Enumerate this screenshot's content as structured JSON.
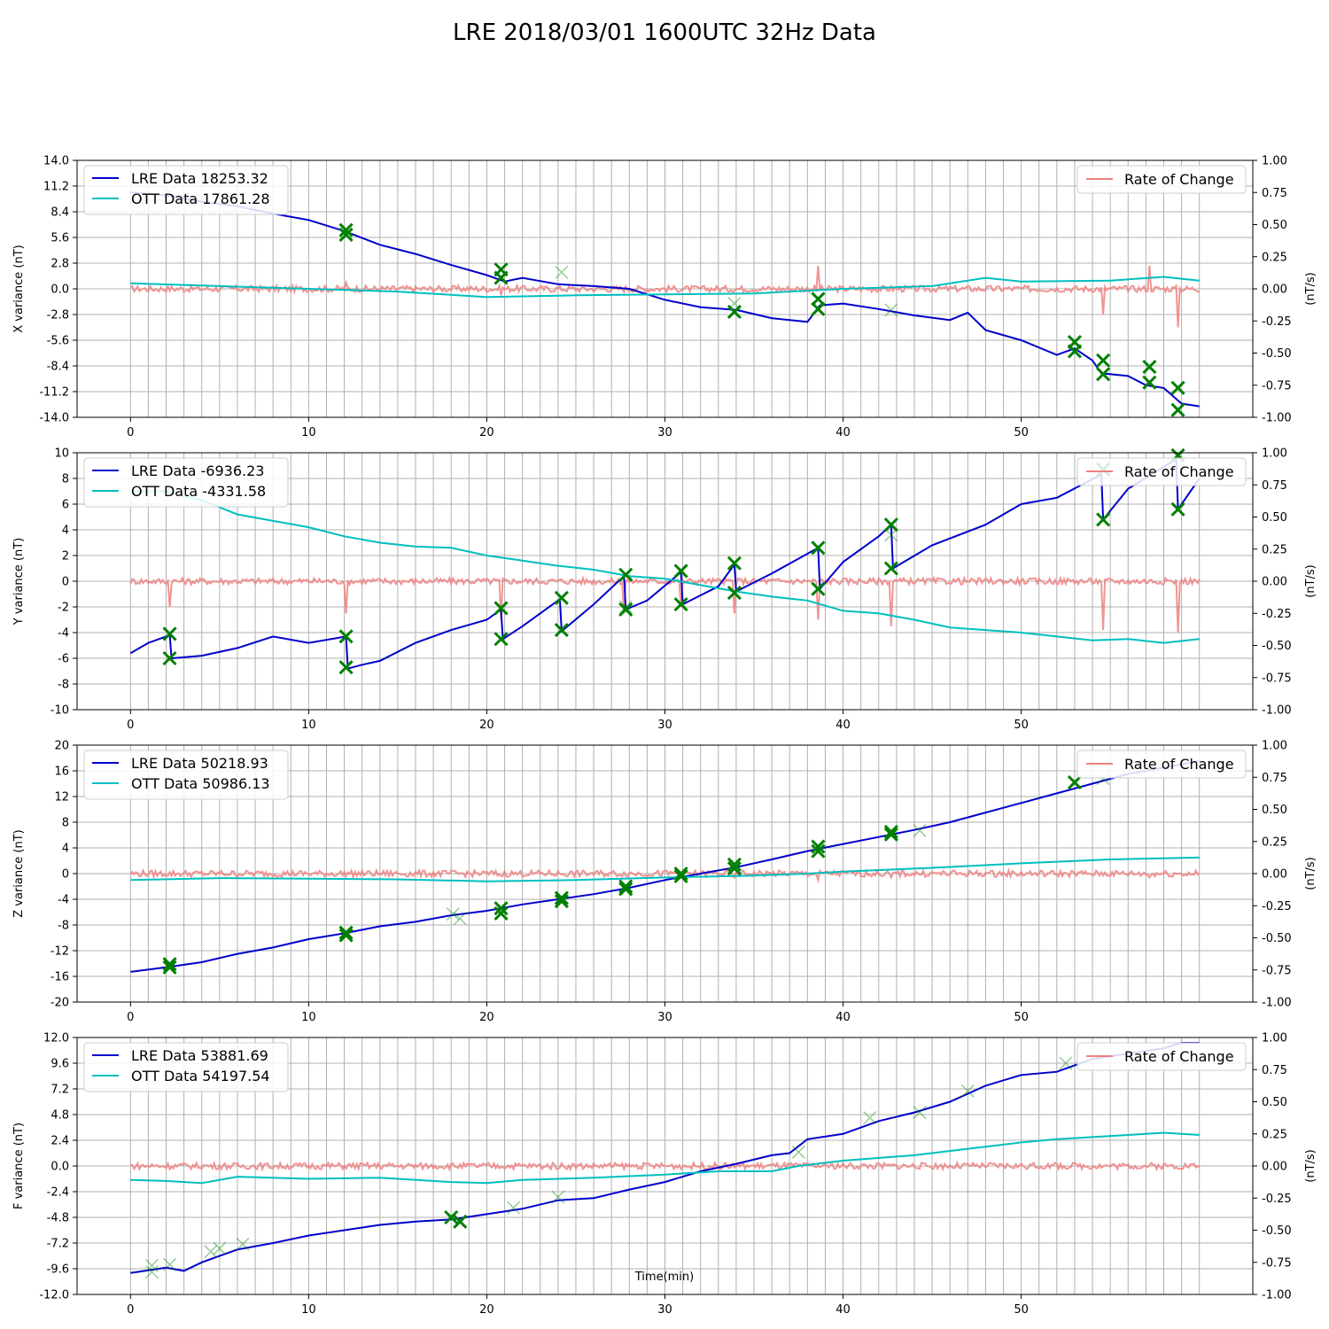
{
  "title": "LRE 2018/03/01 1600UTC 32Hz Data",
  "xlabel": "Time(min)",
  "colors": {
    "lre": "#0000cc",
    "ott": "#00bfbf",
    "rate": "#f08080",
    "marker": "#008000"
  },
  "chart_data": [
    {
      "type": "line",
      "ylabel": "X variance (nT)",
      "y2label": "(nT/s)",
      "xlim": [
        -3,
        63
      ],
      "xticks": [
        0,
        10,
        20,
        30,
        40,
        50
      ],
      "ylim": [
        -14,
        14
      ],
      "yticks": [
        "-14.0",
        "-11.2",
        "-8.4",
        "-5.6",
        "-2.8",
        "0.0",
        "2.8",
        "5.6",
        "8.4",
        "11.2",
        "14.0"
      ],
      "y2lim": [
        -1,
        1
      ],
      "y2ticks": [
        "-1.00",
        "-0.75",
        "-0.50",
        "-0.25",
        "0.00",
        "0.25",
        "0.50",
        "0.75",
        "1.00"
      ],
      "legend": [
        "LRE Data 18253.32",
        "OTT Data 17861.28"
      ],
      "legend2": "Rate of Change",
      "series": [
        {
          "name": "LRE Data 18253.32",
          "x": [
            0,
            2,
            4,
            6,
            8,
            10,
            12,
            14,
            16,
            18,
            20,
            21,
            22,
            24,
            26,
            28,
            30,
            32,
            34,
            36,
            38,
            38.7,
            40,
            42,
            44,
            46,
            47,
            48,
            50,
            52,
            53,
            54,
            54.5,
            56,
            57,
            58,
            59,
            60
          ],
          "y": [
            10.5,
            10.2,
            9.5,
            9,
            8.2,
            7.5,
            6.3,
            4.8,
            3.8,
            2.6,
            1.5,
            0.8,
            1.2,
            0.5,
            0.3,
            0,
            -1.2,
            -2,
            -2.3,
            -3.2,
            -3.6,
            -1.8,
            -1.6,
            -2.2,
            -2.9,
            -3.4,
            -2.6,
            -4.5,
            -5.6,
            -7.2,
            -6.5,
            -7.8,
            -9.2,
            -9.5,
            -10.5,
            -10.8,
            -12.5,
            -12.8
          ]
        },
        {
          "name": "OTT Data 17861.28",
          "x": [
            0,
            5,
            10,
            15,
            20,
            25,
            30,
            35,
            40,
            45,
            48,
            50,
            55,
            58,
            60
          ],
          "y": [
            0.6,
            0.3,
            0,
            -0.3,
            -0.9,
            -0.7,
            -0.6,
            -0.5,
            0,
            0.3,
            1.2,
            0.8,
            0.9,
            1.3,
            0.9
          ]
        }
      ],
      "rate": {
        "spikes": [
          [
            12.1,
            0.05
          ],
          [
            20.8,
            -0.05
          ],
          [
            38.6,
            0.18
          ],
          [
            54.6,
            -0.2
          ],
          [
            57.2,
            0.18
          ],
          [
            58.8,
            -0.3
          ]
        ]
      },
      "markers": [
        [
          12.1,
          6.4
        ],
        [
          12.1,
          5.9
        ],
        [
          20.8,
          2.1
        ],
        [
          20.8,
          1.2
        ],
        [
          33.9,
          -2.5
        ],
        [
          38.6,
          -1.1
        ],
        [
          38.6,
          -2.2
        ],
        [
          53,
          -5.8
        ],
        [
          53,
          -6.8
        ],
        [
          54.6,
          -7.8
        ],
        [
          54.6,
          -9.3
        ],
        [
          57.2,
          -8.5
        ],
        [
          57.2,
          -10.2
        ],
        [
          58.8,
          -10.8
        ],
        [
          58.8,
          -13.2
        ]
      ],
      "faint_markers": [
        [
          2.2,
          10.5
        ],
        [
          24.2,
          1.8
        ],
        [
          33.9,
          -1.6
        ],
        [
          42.7,
          -2.3
        ]
      ]
    },
    {
      "type": "line",
      "ylabel": "Y variance (nT)",
      "y2label": "(nT/s)",
      "xlim": [
        -3,
        63
      ],
      "xticks": [
        0,
        10,
        20,
        30,
        40,
        50
      ],
      "ylim": [
        -10,
        10
      ],
      "yticks": [
        "-10",
        "-8",
        "-6",
        "-4",
        "-2",
        "0",
        "2",
        "4",
        "6",
        "8",
        "10"
      ],
      "y2lim": [
        -1,
        1
      ],
      "y2ticks": [
        "-1.00",
        "-0.75",
        "-0.50",
        "-0.25",
        "0.00",
        "0.25",
        "0.50",
        "0.75",
        "1.00"
      ],
      "legend": [
        "LRE Data -6936.23",
        "OTT Data -4331.58"
      ],
      "legend2": "Rate of Change",
      "series": [
        {
          "name": "LRE Data -6936.23",
          "x": [
            0,
            1,
            2.2,
            2.3,
            4,
            6,
            8,
            10,
            12.1,
            12.2,
            13,
            14,
            16,
            18,
            20,
            20.8,
            20.9,
            22,
            24.1,
            24.2,
            26,
            27.7,
            27.8,
            29,
            30.9,
            31,
            33,
            33.9,
            34,
            36,
            38.6,
            38.7,
            40,
            42,
            42.7,
            42.8,
            45,
            48,
            50,
            52,
            54.5,
            54.6,
            56,
            58.7,
            58.8,
            60
          ],
          "y": [
            -5.6,
            -4.8,
            -4.2,
            -6,
            -5.8,
            -5.2,
            -4.3,
            -4.8,
            -4.3,
            -6.8,
            -6.5,
            -6.2,
            -4.8,
            -3.8,
            -3,
            -2.2,
            -4.5,
            -3.5,
            -1.4,
            -3.9,
            -1.8,
            0.4,
            -2.2,
            -1.5,
            0.7,
            -1.8,
            -0.4,
            1.3,
            -0.8,
            0.6,
            2.6,
            -0.6,
            1.5,
            3.5,
            4.4,
            1,
            2.8,
            4.4,
            6,
            6.5,
            8.3,
            4.8,
            7.2,
            9.5,
            5.6,
            8
          ]
        },
        {
          "name": "OTT Data -4331.58",
          "x": [
            0,
            2,
            4,
            6,
            8,
            10,
            12,
            14,
            16,
            18,
            20,
            22,
            24,
            26,
            28,
            30,
            32,
            34,
            36,
            38,
            40,
            42,
            44,
            46,
            48,
            50,
            52,
            54,
            56,
            58,
            60
          ],
          "y": [
            7,
            7,
            6.3,
            5.2,
            4.7,
            4.2,
            3.5,
            3,
            2.7,
            2.6,
            2,
            1.6,
            1.2,
            0.9,
            0.4,
            0.2,
            -0.3,
            -0.8,
            -1.2,
            -1.5,
            -2.3,
            -2.5,
            -3,
            -3.6,
            -3.8,
            -4,
            -4.3,
            -4.6,
            -4.5,
            -4.8,
            -4.5
          ]
        }
      ],
      "rate": {
        "spikes": [
          [
            2.2,
            -0.2
          ],
          [
            12.1,
            -0.25
          ],
          [
            20.8,
            -0.3
          ],
          [
            27.7,
            -0.25
          ],
          [
            30.9,
            -0.2
          ],
          [
            33.9,
            -0.25
          ],
          [
            38.6,
            -0.3
          ],
          [
            42.7,
            -0.35
          ],
          [
            54.6,
            -0.38
          ],
          [
            58.8,
            -0.4
          ]
        ]
      },
      "markers": [
        [
          2.2,
          -4.1
        ],
        [
          2.2,
          -6
        ],
        [
          12.1,
          -4.3
        ],
        [
          12.1,
          -6.7
        ],
        [
          20.8,
          -2.1
        ],
        [
          20.8,
          -4.5
        ],
        [
          24.2,
          -1.3
        ],
        [
          24.2,
          -3.8
        ],
        [
          27.8,
          0.5
        ],
        [
          27.8,
          -2.2
        ],
        [
          30.9,
          0.8
        ],
        [
          30.9,
          -1.8
        ],
        [
          33.9,
          1.4
        ],
        [
          33.9,
          -0.9
        ],
        [
          38.6,
          2.6
        ],
        [
          38.6,
          -0.6
        ],
        [
          42.7,
          4.4
        ],
        [
          42.7,
          1
        ],
        [
          54.6,
          8.7
        ],
        [
          54.6,
          4.8
        ],
        [
          58.8,
          9.8
        ],
        [
          58.8,
          5.6
        ]
      ],
      "faint_markers": [
        [
          27.8,
          -2
        ],
        [
          42.7,
          3.6
        ]
      ]
    },
    {
      "type": "line",
      "ylabel": "Z variance (nT)",
      "y2label": "(nT/s)",
      "xlim": [
        -3,
        63
      ],
      "xticks": [
        0,
        10,
        20,
        30,
        40,
        50
      ],
      "ylim": [
        -20,
        20
      ],
      "yticks": [
        "-20",
        "-16",
        "-12",
        "-8",
        "-4",
        "0",
        "4",
        "8",
        "12",
        "16",
        "20"
      ],
      "y2lim": [
        -1,
        1
      ],
      "y2ticks": [
        "-1.00",
        "-0.75",
        "-0.50",
        "-0.25",
        "0.00",
        "0.25",
        "0.50",
        "0.75",
        "1.00"
      ],
      "legend": [
        "LRE Data 50218.93",
        "OTT Data 50986.13"
      ],
      "legend2": "Rate of Change",
      "series": [
        {
          "name": "LRE Data 50218.93",
          "x": [
            0,
            2,
            4,
            6,
            8,
            10,
            12,
            14,
            16,
            18,
            20,
            22,
            24,
            26,
            28,
            30,
            32,
            34,
            36,
            38,
            40,
            42,
            44,
            46,
            48,
            50,
            52,
            54,
            56,
            58,
            60
          ],
          "y": [
            -15.3,
            -14.6,
            -13.8,
            -12.5,
            -11.5,
            -10.2,
            -9.3,
            -8.2,
            -7.5,
            -6.5,
            -5.8,
            -4.8,
            -4,
            -3.2,
            -2.2,
            -1,
            0,
            1,
            2.2,
            3.5,
            4.6,
            5.7,
            6.8,
            8,
            9.5,
            11,
            12.5,
            14,
            15.5,
            16.5,
            17.5
          ]
        },
        {
          "name": "OTT Data 50986.13",
          "x": [
            0,
            5,
            10,
            15,
            20,
            25,
            30,
            35,
            38,
            40,
            45,
            50,
            55,
            60
          ],
          "y": [
            -1,
            -0.7,
            -0.8,
            -0.9,
            -1.2,
            -1,
            -0.6,
            -0.3,
            0,
            0.3,
            0.9,
            1.6,
            2.2,
            2.5
          ]
        }
      ],
      "rate": {
        "spikes": [
          [
            12.1,
            -0.02
          ],
          [
            20.8,
            -0.02
          ],
          [
            33.9,
            -0.03
          ],
          [
            38.6,
            -0.05
          ],
          [
            42.7,
            -0.03
          ],
          [
            57.2,
            -0.03
          ]
        ]
      },
      "markers": [
        [
          2.2,
          -14.1
        ],
        [
          2.2,
          -14.6
        ],
        [
          12.1,
          -9.2
        ],
        [
          12.1,
          -9.6
        ],
        [
          20.8,
          -5.4
        ],
        [
          20.8,
          -6.2
        ],
        [
          24.2,
          -3.8
        ],
        [
          24.2,
          -4.3
        ],
        [
          27.8,
          -2
        ],
        [
          27.8,
          -2.4
        ],
        [
          30.9,
          0
        ],
        [
          30.9,
          -0.4
        ],
        [
          33.9,
          1.4
        ],
        [
          33.9,
          0.8
        ],
        [
          38.6,
          4.2
        ],
        [
          38.6,
          3.5
        ],
        [
          42.7,
          6.5
        ],
        [
          42.7,
          6.1
        ],
        [
          53,
          14.2
        ]
      ],
      "faint_markers": [
        [
          18.1,
          -6.3
        ],
        [
          18.5,
          -7
        ],
        [
          44.3,
          6.7
        ],
        [
          54.6,
          14.8
        ],
        [
          57.2,
          16.5
        ]
      ]
    },
    {
      "type": "line",
      "ylabel": "F variance (nT)",
      "y2label": "(nT/s)",
      "xlim": [
        -3,
        63
      ],
      "xticks": [
        0,
        10,
        20,
        30,
        40,
        50
      ],
      "ylim": [
        -12,
        12
      ],
      "yticks": [
        "-12.0",
        "-9.6",
        "-7.2",
        "-4.8",
        "-2.4",
        "0.0",
        "2.4",
        "4.8",
        "7.2",
        "9.6",
        "12.0"
      ],
      "y2lim": [
        -1,
        1
      ],
      "y2ticks": [
        "-1.00",
        "-0.75",
        "-0.50",
        "-0.25",
        "0.00",
        "0.25",
        "0.50",
        "0.75",
        "1.00"
      ],
      "legend": [
        "LRE Data 53881.69",
        "OTT Data 54197.54"
      ],
      "legend2": "Rate of Change",
      "series": [
        {
          "name": "LRE Data 53881.69",
          "x": [
            0,
            2,
            3,
            4,
            6,
            8,
            10,
            12,
            14,
            16,
            18,
            20,
            22,
            24,
            26,
            28,
            30,
            32,
            34,
            36,
            37,
            38,
            40,
            42,
            44,
            46,
            48,
            50,
            52,
            54,
            56,
            58,
            59,
            60
          ],
          "y": [
            -10,
            -9.5,
            -9.8,
            -9,
            -7.8,
            -7.2,
            -6.5,
            -6,
            -5.5,
            -5.2,
            -5,
            -4.5,
            -4,
            -3.2,
            -3,
            -2.2,
            -1.5,
            -0.5,
            0.2,
            1,
            1.2,
            2.5,
            3,
            4.2,
            5,
            6,
            7.5,
            8.5,
            8.8,
            10,
            10.5,
            11,
            11.5,
            11.5
          ]
        },
        {
          "name": "OTT Data 54197.54",
          "x": [
            0,
            2,
            3,
            4,
            6,
            10,
            14,
            18,
            20,
            22,
            24,
            26,
            30,
            33,
            36,
            37.5,
            40,
            44,
            48,
            50,
            52,
            54,
            56,
            58,
            60
          ],
          "y": [
            -1.3,
            -1.4,
            -1.5,
            -1.6,
            -1,
            -1.2,
            -1.1,
            -1.5,
            -1.6,
            -1.3,
            -1.2,
            -1.1,
            -0.8,
            -0.5,
            -0.5,
            0,
            0.5,
            1,
            1.8,
            2.2,
            2.5,
            2.7,
            2.9,
            3.1,
            2.9
          ]
        }
      ],
      "rate": {
        "spikes": []
      },
      "markers": [
        [
          18,
          -4.8
        ],
        [
          18.5,
          -5.2
        ]
      ],
      "faint_markers": [
        [
          1.2,
          -9.3
        ],
        [
          1.2,
          -9.9
        ],
        [
          2.2,
          -9.2
        ],
        [
          4.5,
          -8
        ],
        [
          5,
          -7.7
        ],
        [
          6.3,
          -7.3
        ],
        [
          21.5,
          -3.9
        ],
        [
          24,
          -2.9
        ],
        [
          37.5,
          1.3
        ],
        [
          41.5,
          4.5
        ],
        [
          44.3,
          5
        ],
        [
          47,
          7
        ],
        [
          52.5,
          9.6
        ]
      ]
    }
  ]
}
